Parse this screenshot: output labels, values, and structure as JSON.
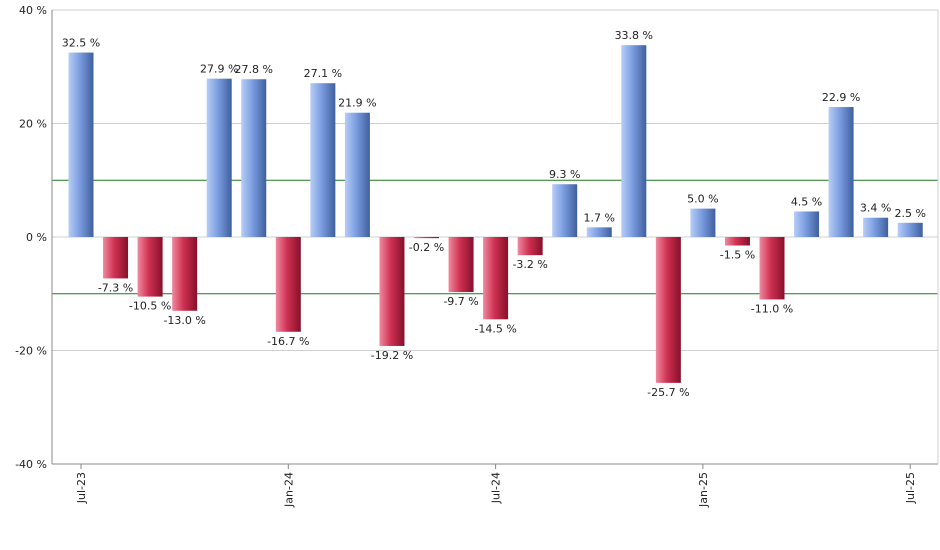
{
  "chart_data": {
    "type": "bar",
    "title": "",
    "xlabel": "",
    "ylabel": "",
    "ylim": [
      -40,
      40
    ],
    "y_ticks": [
      40,
      20,
      0,
      -20,
      -40
    ],
    "y_tick_labels": [
      "40 %",
      "20 %",
      "0 %",
      "-20 %",
      "-40 %"
    ],
    "x_ticks": [
      {
        "label": "Jul-23",
        "index": 0
      },
      {
        "label": "Jan-24",
        "index": 6
      },
      {
        "label": "Jul-24",
        "index": 12
      },
      {
        "label": "Jan-25",
        "index": 18
      },
      {
        "label": "Jul-25",
        "index": 24
      }
    ],
    "reference_lines": [
      10,
      -10
    ],
    "grid": true,
    "legend": "none",
    "values": [
      32.5,
      -7.3,
      -10.5,
      -13.0,
      27.9,
      27.8,
      -16.7,
      27.1,
      21.9,
      -19.2,
      -0.2,
      -9.7,
      -14.5,
      -3.2,
      9.3,
      1.7,
      33.8,
      -25.7,
      5.0,
      -1.5,
      -11.0,
      4.5,
      22.9,
      3.4,
      2.5
    ],
    "labels": [
      "32.5 %",
      "-7.3 %",
      "-10.5 %",
      "-13.0 %",
      "27.9 %",
      "27.8 %",
      "-16.7 %",
      "27.1 %",
      "21.9 %",
      "-19.2 %",
      "-0.2 %",
      "-9.7 %",
      "-14.5 %",
      "-3.2 %",
      "9.3 %",
      "1.7 %",
      "33.8 %",
      "-25.7 %",
      "5.0 %",
      "-1.5 %",
      "-11.0 %",
      "4.5 %",
      "22.9 %",
      "3.4 %",
      "2.5 %"
    ],
    "colors": {
      "positive_light": "#b7cdf6",
      "positive_mid": "#7b9de0",
      "positive_dark": "#3f5f9e",
      "negative_light": "#f08aa0",
      "negative_mid": "#cf3152",
      "negative_dark": "#86102a",
      "reference_line": "#1f7a1f",
      "grid": "#cfcfcf",
      "axis": "#888888"
    }
  }
}
